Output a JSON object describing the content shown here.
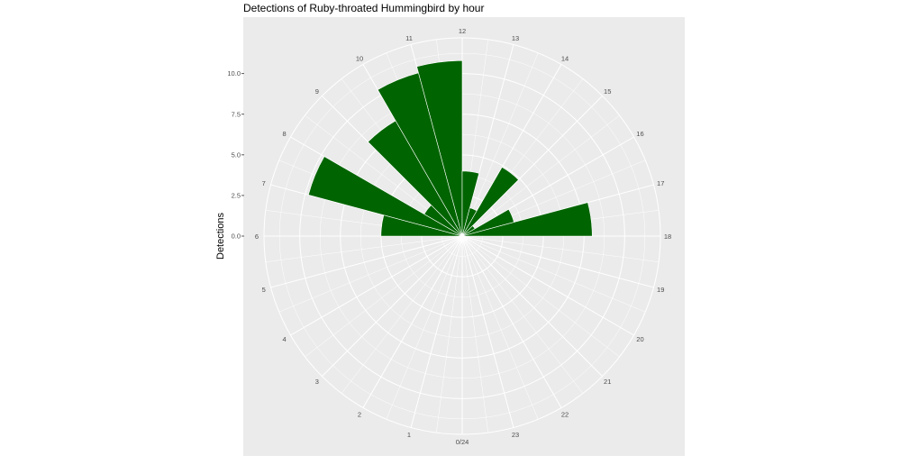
{
  "chart_data": {
    "type": "bar",
    "coord": "polar",
    "title": "Detections of Ruby-throated Hummingbird by hour",
    "ylabel": "Detections",
    "xlabel": "",
    "x_tick_labels": [
      "0/24",
      "1",
      "2",
      "3",
      "4",
      "5",
      "6",
      "7",
      "8",
      "9",
      "10",
      "11",
      "12",
      "13",
      "14",
      "15",
      "16",
      "17",
      "18",
      "19",
      "20",
      "21",
      "22",
      "23"
    ],
    "y_tick_labels": [
      "0.0",
      "2.5",
      "5.0",
      "7.5",
      "10.0"
    ],
    "y_ticks": [
      0,
      2.5,
      5,
      7.5,
      10
    ],
    "ylim": [
      0,
      12.2
    ],
    "categories": [
      "0",
      "1",
      "2",
      "3",
      "4",
      "5",
      "6",
      "7",
      "8",
      "9",
      "10",
      "11",
      "12",
      "13",
      "14",
      "15",
      "16",
      "17",
      "18",
      "19",
      "20",
      "21",
      "22",
      "23"
    ],
    "values": [
      0,
      0,
      0,
      0,
      0,
      0,
      5,
      9.8,
      2.7,
      8.2,
      10.4,
      10.8,
      4,
      1.8,
      4.9,
      0.9,
      3.3,
      8,
      0,
      0,
      0,
      0,
      0,
      0
    ],
    "bar_color": "#006400",
    "panel_color": "#ebebeb",
    "grid_color": "#ffffff",
    "grid": true,
    "legend": "none"
  }
}
